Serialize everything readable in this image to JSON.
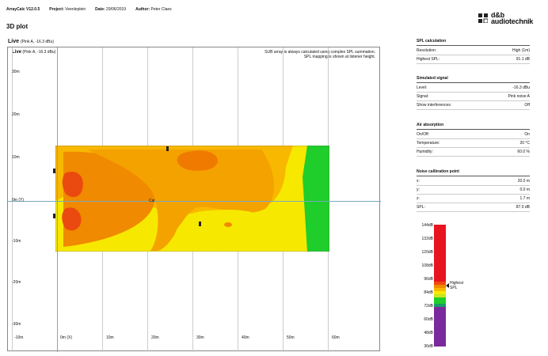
{
  "header": {
    "app": "ArrayCalc V12.0.5",
    "project_label": "Project:",
    "project": "Veenleplein",
    "date_label": "Date:",
    "date": "29/06/2019",
    "author_label": "Author:",
    "author": "Peter Claes"
  },
  "logo": {
    "line1": "d&b",
    "line2": "audiotechnik"
  },
  "page_title": "3D plot",
  "plot": {
    "label": "Live",
    "sublabel": "(Pink A, -16.3 dBu)",
    "inner_label": "Live",
    "inner_sublabel": "(Pink A, -16.3 dBu)",
    "note1": "SUB array is always calculated using complex SPL summation.",
    "note2": "SPL mapping is shown at listener height.",
    "y_ticks": [
      "30m",
      "20m",
      "10m",
      "0m (Y)",
      "-10m",
      "-20m",
      "-30m"
    ],
    "x_ticks": [
      "-10m",
      "0m (X)",
      "10m",
      "20m",
      "30m",
      "40m",
      "50m",
      "60m"
    ],
    "center_label": "Cal"
  },
  "panels": {
    "spl": {
      "title": "SPL calculation",
      "rows": [
        {
          "k": "Resolution:",
          "v": "High (1m)"
        },
        {
          "k": "Highest SPL:",
          "v": "91.1 dB"
        }
      ]
    },
    "signal": {
      "title": "Simulated signal",
      "rows": [
        {
          "k": "Level:",
          "v": "-16.3 dBu"
        },
        {
          "k": "Signal:",
          "v": "Pink noise A"
        },
        {
          "k": "Show interferences:",
          "v": "Off"
        }
      ]
    },
    "air": {
      "title": "Air absorption",
      "rows": [
        {
          "k": "On/Off:",
          "v": "On"
        },
        {
          "k": "Temperature:",
          "v": "20 °C"
        },
        {
          "k": "Humidity:",
          "v": "60.0 %"
        }
      ]
    },
    "noise": {
      "title": "Noise calibration point",
      "rows": [
        {
          "k": "x:",
          "v": "20.0 m"
        },
        {
          "k": "y:",
          "v": "0.0 m"
        },
        {
          "k": "z:",
          "v": "1.7 m"
        },
        {
          "k": "SPL:",
          "v": "87.0 dB"
        }
      ]
    }
  },
  "scale": {
    "labels": [
      "144dB",
      "132dB",
      "120dB",
      "108dB",
      "96dB",
      "84dB",
      "72dB",
      "60dB",
      "48dB",
      "36dB"
    ],
    "marker": "Highest SPL",
    "colors": {
      "red": "#e8141e",
      "orange": "#f08a00",
      "yellow": "#f7e800",
      "green": "#1fce2a",
      "purple": "#7a2a9c"
    }
  }
}
